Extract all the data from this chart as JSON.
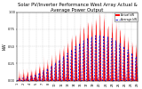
{
  "title": "Solar PV/Inverter Performance West Array Actual & Average Power Output",
  "title_fontsize": 3.8,
  "background_color": "#ffffff",
  "plot_bg_color": "#ffffff",
  "grid_color": "#aaaaaa",
  "area_color": "#ff0000",
  "avg_line_color": "#0000cc",
  "actual_line_color": "#ff0000",
  "legend_labels": [
    "Actual kW",
    "Average kW"
  ],
  "legend_colors": [
    "#ff0000",
    "#0000cc"
  ],
  "ylim_max": 1.0,
  "n_days": 30,
  "pts_per_day": 48,
  "tick_fontsize": 2.5,
  "ylabel": "kW",
  "ylabel_fontsize": 3.5
}
